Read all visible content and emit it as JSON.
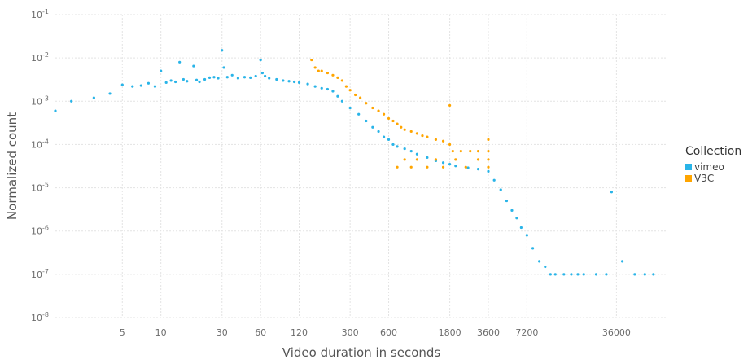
{
  "chart_data": {
    "type": "scatter",
    "title": "",
    "xlabel": "Video duration in seconds",
    "ylabel": "Normalized count",
    "x_scale": "log",
    "y_scale": "log",
    "xlim": [
      1.5,
      90000
    ],
    "ylim": [
      1e-08,
      0.1
    ],
    "x_ticks": [
      5,
      10,
      30,
      60,
      120,
      300,
      600,
      1800,
      3600,
      7200,
      36000
    ],
    "x_tick_labels": [
      "5",
      "10",
      "30",
      "60",
      "120",
      "300",
      "600",
      "1800",
      "3600",
      "7200",
      "36000"
    ],
    "y_ticks": [
      1e-08,
      1e-07,
      1e-06,
      1e-05,
      0.0001,
      0.001,
      0.01,
      0.1
    ],
    "y_tick_labels": [
      {
        "base": "10",
        "exp": "-8"
      },
      {
        "base": "10",
        "exp": "-7"
      },
      {
        "base": "10",
        "exp": "-6"
      },
      {
        "base": "10",
        "exp": "-5"
      },
      {
        "base": "10",
        "exp": "-4"
      },
      {
        "base": "10",
        "exp": "-3"
      },
      {
        "base": "10",
        "exp": "-2"
      },
      {
        "base": "10",
        "exp": "-1"
      }
    ],
    "grid": true,
    "legend": {
      "title": "Collection",
      "position": "right"
    },
    "series": [
      {
        "name": "vimeo",
        "color": "#29b4e8",
        "points": [
          [
            1.5,
            0.0006
          ],
          [
            2,
            0.001
          ],
          [
            3,
            0.0012
          ],
          [
            4,
            0.0015
          ],
          [
            5,
            0.0024
          ],
          [
            6,
            0.0022
          ],
          [
            7,
            0.0023
          ],
          [
            8,
            0.0026
          ],
          [
            9,
            0.0022
          ],
          [
            10,
            0.005
          ],
          [
            11,
            0.0027
          ],
          [
            12,
            0.003
          ],
          [
            13,
            0.0028
          ],
          [
            14,
            0.008
          ],
          [
            15,
            0.0032
          ],
          [
            16,
            0.0029
          ],
          [
            18,
            0.0065
          ],
          [
            19,
            0.0031
          ],
          [
            20,
            0.0028
          ],
          [
            22,
            0.0032
          ],
          [
            24,
            0.0035
          ],
          [
            26,
            0.0036
          ],
          [
            28,
            0.0034
          ],
          [
            30,
            0.015
          ],
          [
            31,
            0.006
          ],
          [
            33,
            0.0036
          ],
          [
            36,
            0.004
          ],
          [
            40,
            0.0034
          ],
          [
            45,
            0.0036
          ],
          [
            50,
            0.0035
          ],
          [
            55,
            0.0038
          ],
          [
            60,
            0.009
          ],
          [
            62,
            0.0045
          ],
          [
            65,
            0.0038
          ],
          [
            70,
            0.0034
          ],
          [
            80,
            0.0032
          ],
          [
            90,
            0.003
          ],
          [
            100,
            0.0029
          ],
          [
            110,
            0.0028
          ],
          [
            120,
            0.0027
          ],
          [
            140,
            0.0025
          ],
          [
            160,
            0.0022
          ],
          [
            180,
            0.002
          ],
          [
            200,
            0.0019
          ],
          [
            220,
            0.0017
          ],
          [
            240,
            0.0013
          ],
          [
            260,
            0.001
          ],
          [
            300,
            0.0007
          ],
          [
            350,
            0.0005
          ],
          [
            400,
            0.00035
          ],
          [
            450,
            0.00025
          ],
          [
            500,
            0.0002
          ],
          [
            550,
            0.00015
          ],
          [
            600,
            0.00013
          ],
          [
            650,
            0.0001
          ],
          [
            700,
            9e-05
          ],
          [
            800,
            8e-05
          ],
          [
            900,
            7e-05
          ],
          [
            1000,
            6e-05
          ],
          [
            1200,
            5e-05
          ],
          [
            1400,
            4.2e-05
          ],
          [
            1600,
            3.8e-05
          ],
          [
            1800,
            3.5e-05
          ],
          [
            2000,
            3.2e-05
          ],
          [
            2500,
            2.9e-05
          ],
          [
            3000,
            2.7e-05
          ],
          [
            3600,
            2.4e-05
          ],
          [
            4000,
            1.5e-05
          ],
          [
            4500,
            9e-06
          ],
          [
            5000,
            5e-06
          ],
          [
            5500,
            3e-06
          ],
          [
            6000,
            2e-06
          ],
          [
            6500,
            1.2e-06
          ],
          [
            7200,
            8e-07
          ],
          [
            8000,
            4e-07
          ],
          [
            9000,
            2e-07
          ],
          [
            10000,
            1.5e-07
          ],
          [
            11000,
            1e-07
          ],
          [
            12000,
            1e-07
          ],
          [
            14000,
            1e-07
          ],
          [
            16000,
            1e-07
          ],
          [
            18000,
            1e-07
          ],
          [
            20000,
            1e-07
          ],
          [
            25000,
            1e-07
          ],
          [
            30000,
            1e-07
          ],
          [
            33000,
            8e-06
          ],
          [
            40000,
            2e-07
          ],
          [
            50000,
            1e-07
          ],
          [
            60000,
            1e-07
          ],
          [
            70000,
            1e-07
          ]
        ]
      },
      {
        "name": "V3C",
        "color": "#ffa500",
        "points": [
          [
            150,
            0.009
          ],
          [
            160,
            0.006
          ],
          [
            170,
            0.005
          ],
          [
            180,
            0.005
          ],
          [
            200,
            0.0045
          ],
          [
            220,
            0.004
          ],
          [
            240,
            0.0035
          ],
          [
            260,
            0.003
          ],
          [
            280,
            0.0022
          ],
          [
            300,
            0.0018
          ],
          [
            330,
            0.0014
          ],
          [
            360,
            0.0012
          ],
          [
            400,
            0.0009
          ],
          [
            450,
            0.0007
          ],
          [
            500,
            0.0006
          ],
          [
            550,
            0.0005
          ],
          [
            600,
            0.0004
          ],
          [
            650,
            0.00035
          ],
          [
            700,
            0.0003
          ],
          [
            750,
            0.00025
          ],
          [
            800,
            0.00022
          ],
          [
            900,
            0.0002
          ],
          [
            1000,
            0.00018
          ],
          [
            1100,
            0.00016
          ],
          [
            1200,
            0.00015
          ],
          [
            1400,
            0.00013
          ],
          [
            1600,
            0.00012
          ],
          [
            1800,
            0.0001
          ],
          [
            1900,
            7e-05
          ],
          [
            2200,
            7e-05
          ],
          [
            2600,
            7e-05
          ],
          [
            3000,
            7e-05
          ],
          [
            3600,
            7e-05
          ],
          [
            800,
            4.5e-05
          ],
          [
            1000,
            4.5e-05
          ],
          [
            1400,
            4.5e-05
          ],
          [
            2000,
            4.5e-05
          ],
          [
            3000,
            4.5e-05
          ],
          [
            3600,
            4.5e-05
          ],
          [
            700,
            3e-05
          ],
          [
            900,
            3e-05
          ],
          [
            1200,
            3e-05
          ],
          [
            1600,
            3e-05
          ],
          [
            2400,
            3e-05
          ],
          [
            3600,
            3e-05
          ],
          [
            1800,
            0.0008
          ],
          [
            3600,
            0.00013
          ]
        ]
      }
    ]
  }
}
